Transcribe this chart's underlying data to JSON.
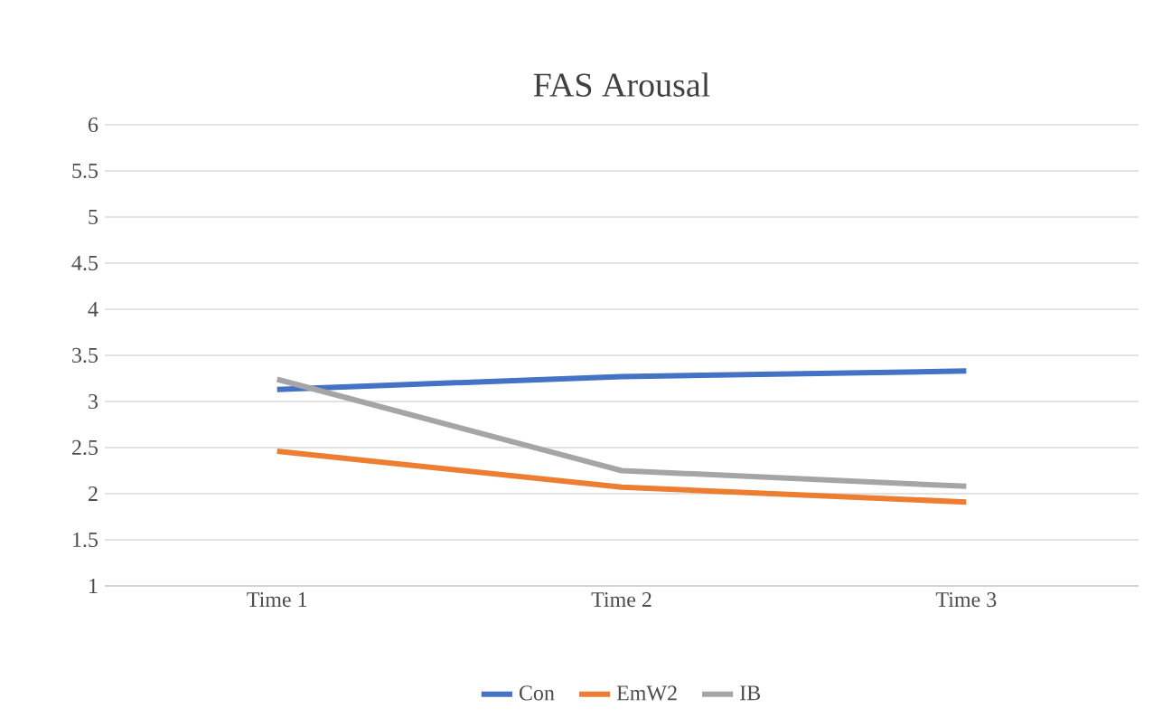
{
  "chart_data": {
    "type": "line",
    "title": "FAS Arousal",
    "categories": [
      "Time 1",
      "Time 2",
      "Time 3"
    ],
    "series": [
      {
        "name": "Con",
        "color": "#4472c4",
        "values": [
          3.13,
          3.27,
          3.33
        ]
      },
      {
        "name": "EmW2",
        "color": "#ed7d31",
        "values": [
          2.46,
          2.07,
          1.91
        ]
      },
      {
        "name": "IB",
        "color": "#a5a5a5",
        "values": [
          3.24,
          2.25,
          2.08
        ]
      }
    ],
    "ylim": [
      1,
      6
    ],
    "yticks": [
      1,
      1.5,
      2,
      2.5,
      3,
      3.5,
      4,
      4.5,
      5,
      5.5,
      6
    ],
    "grid": "y",
    "legend": "bottom",
    "marker": "none",
    "line_style": "solid"
  }
}
